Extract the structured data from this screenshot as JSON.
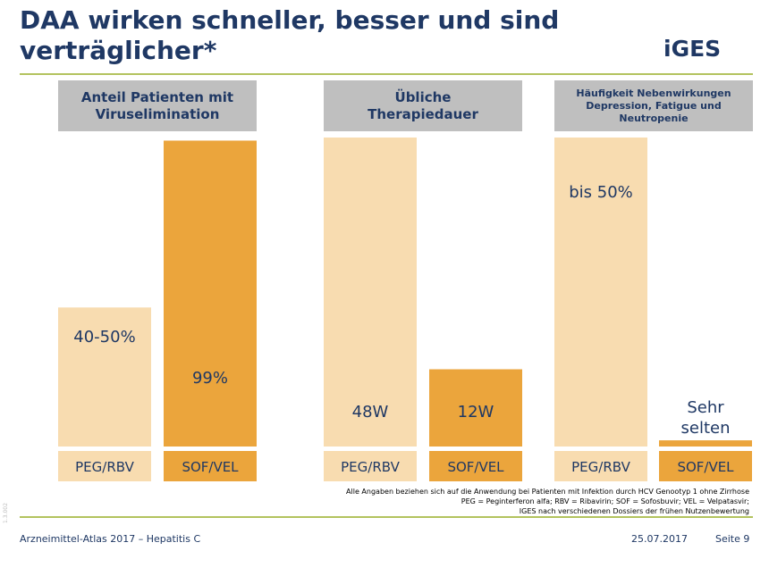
{
  "slide": {
    "title": "DAA wirken schneller, besser und sind verträglicher*",
    "logo": "iGES",
    "side_code": "1.3.002",
    "footnote_lines": [
      "Alle Angaben beziehen sich auf die Anwendung bei Patienten mit Infektion durch HCV Genootyp 1 ohne Zirrhose",
      "PEG = Peginterferon alfa; RBV = Ribavirin; SOF = Sofosbuvir; VEL = Velpatasvir;",
      "IGES nach verschiedenen Dossiers der frühen Nutzenbewertung"
    ],
    "footer_left": "Arzneimittel-Atlas 2017 – Hepatitis C",
    "footer_date": "25.07.2017",
    "footer_page": "Seite 9"
  },
  "colors": {
    "title": "#1f3864",
    "header_bg": "#bfbfbf",
    "light_bar": "#f8dcb0",
    "dark_bar": "#eba53c",
    "rule": "#b3c35e"
  },
  "chart_data": [
    {
      "type": "bar",
      "title": "Anteil Patienten mit\nViruselimination",
      "categories": [
        "PEG/RBV",
        "SOF/VEL"
      ],
      "values": [
        45,
        99
      ],
      "value_labels": [
        "40-50%",
        "99%"
      ],
      "ylim": [
        0,
        100
      ],
      "grid": false
    },
    {
      "type": "bar",
      "title": "Übliche\nTherapiedauer",
      "categories": [
        "PEG/RBV",
        "SOF/VEL"
      ],
      "values": [
        48,
        12
      ],
      "value_labels": [
        "48W",
        "12W"
      ],
      "ylim": [
        0,
        48
      ],
      "grid": false
    },
    {
      "type": "bar",
      "title": "Häufigkeit Nebenwirkungen\nDepression, Fatigue und\nNeutropenie",
      "categories": [
        "PEG/RBV",
        "SOF/VEL"
      ],
      "values": [
        50,
        1
      ],
      "value_labels": [
        "bis 50%",
        "Sehr\nselten"
      ],
      "ylim": [
        0,
        50
      ],
      "grid": false
    }
  ]
}
